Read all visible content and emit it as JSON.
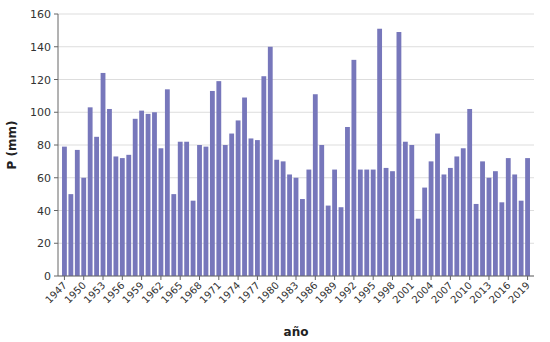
{
  "chart_data": {
    "type": "bar",
    "x": [
      1947,
      1948,
      1949,
      1950,
      1951,
      1952,
      1953,
      1954,
      1955,
      1956,
      1957,
      1958,
      1959,
      1960,
      1961,
      1962,
      1963,
      1964,
      1965,
      1966,
      1967,
      1968,
      1969,
      1970,
      1971,
      1972,
      1973,
      1974,
      1975,
      1976,
      1977,
      1978,
      1979,
      1980,
      1981,
      1982,
      1983,
      1984,
      1985,
      1986,
      1987,
      1988,
      1989,
      1990,
      1991,
      1992,
      1993,
      1994,
      1995,
      1996,
      1997,
      1998,
      1999,
      2000,
      2001,
      2002,
      2003,
      2004,
      2005,
      2006,
      2007,
      2008,
      2009,
      2010,
      2011,
      2012,
      2013,
      2014,
      2015,
      2016,
      2017,
      2018,
      2019
    ],
    "values": [
      79,
      50,
      77,
      60,
      103,
      85,
      124,
      102,
      73,
      72,
      74,
      96,
      101,
      99,
      100,
      78,
      114,
      50,
      82,
      82,
      46,
      80,
      79,
      113,
      119,
      80,
      87,
      95,
      109,
      84,
      83,
      122,
      140,
      71,
      70,
      62,
      60,
      47,
      65,
      111,
      80,
      43,
      65,
      42,
      91,
      132,
      65,
      65,
      65,
      151,
      66,
      64,
      149,
      82,
      80,
      35,
      54,
      70,
      87,
      62,
      66,
      73,
      78,
      102,
      44,
      70,
      60,
      64,
      45,
      72,
      62,
      46,
      72
    ],
    "color": "#7777bb",
    "x_label": "año",
    "y_label": "P (mm)",
    "xlim": [
      1946,
      2020
    ],
    "xticks": [
      1947,
      1950,
      1953,
      1956,
      1959,
      1962,
      1965,
      1968,
      1971,
      1974,
      1977,
      1980,
      1983,
      1986,
      1989,
      1992,
      1995,
      1998,
      2001,
      2004,
      2007,
      2010,
      2013,
      2016,
      2019
    ],
    "ylim": [
      0,
      160
    ],
    "yticks": [
      0,
      20,
      40,
      60,
      80,
      100,
      120,
      140,
      160
    ],
    "grid": true
  }
}
